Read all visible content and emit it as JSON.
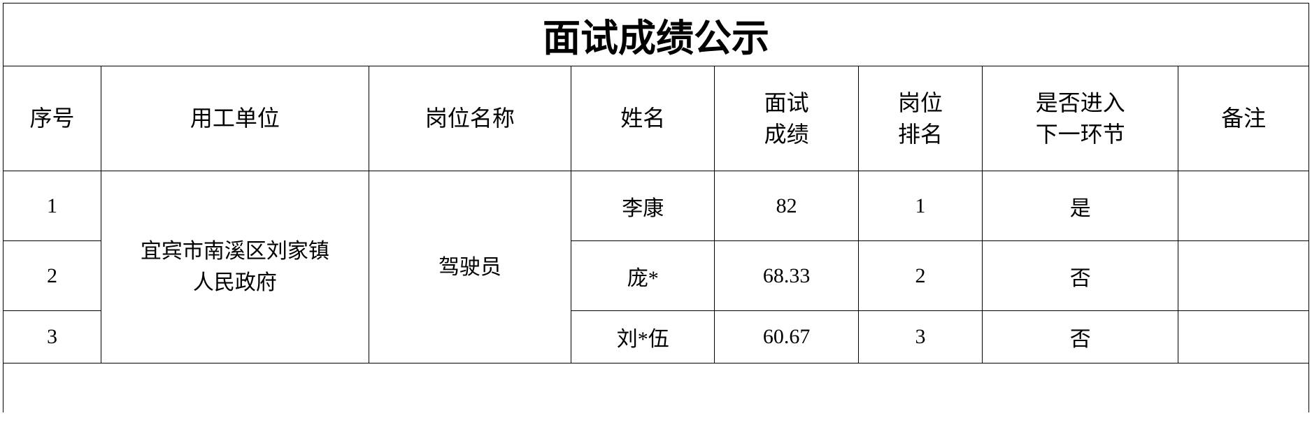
{
  "table": {
    "title": "面试成绩公示",
    "columns": {
      "seq": "序号",
      "employer": "用工单位",
      "position": "岗位名称",
      "name": "姓名",
      "score": "面试\n成绩",
      "rank": "岗位\n排名",
      "advance": "是否进入\n下一环节",
      "remark": "备注"
    },
    "column_widths_pct": [
      7.5,
      20.5,
      15.5,
      11,
      11,
      9.5,
      15,
      10
    ],
    "employer_value": "宜宾市南溪区刘家镇\n人民政府",
    "position_value": "驾驶员",
    "rows": [
      {
        "seq": "1",
        "name": "李康",
        "score": "82",
        "rank": "1",
        "advance": "是",
        "remark": ""
      },
      {
        "seq": "2",
        "name": "庞*",
        "score": "68.33",
        "rank": "2",
        "advance": "否",
        "remark": ""
      },
      {
        "seq": "3",
        "name": "刘*伍",
        "score": "60.67",
        "rank": "3",
        "advance": "否",
        "remark": ""
      }
    ],
    "colors": {
      "border": "#000000",
      "background": "#ffffff",
      "text": "#000000"
    },
    "fonts": {
      "title_size_pt": 40,
      "header_size_pt": 24,
      "body_size_pt": 22,
      "family": "SimSun"
    }
  }
}
